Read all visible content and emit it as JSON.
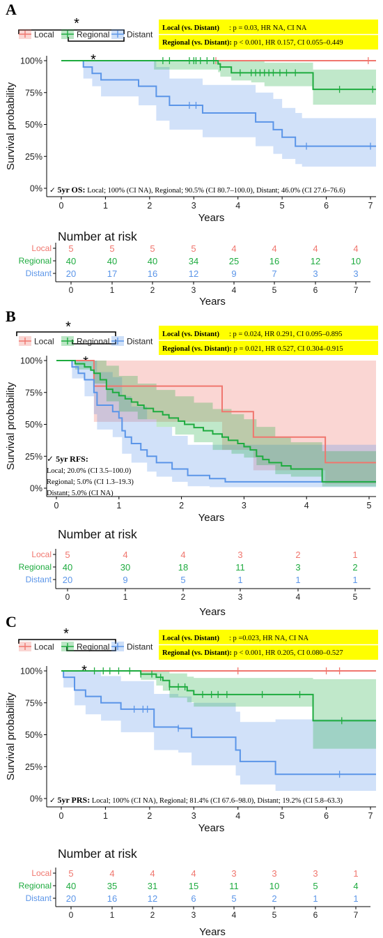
{
  "colors": {
    "local": "#f0766e",
    "regional": "#1eab3f",
    "distant": "#5b95e8",
    "highlight": "#ffff00"
  },
  "panels": [
    {
      "letter": "A",
      "legend": [
        "Local",
        "Regional",
        "Distant"
      ],
      "significance_marker": "*",
      "stats": [
        {
          "bold": "Local (vs. Distant)",
          "sep": ":",
          "text": " p = 0.03, HR NA, CI NA"
        },
        {
          "bold": "Regional (vs. Distant):",
          "sep": "",
          "text": " p < 0.001, HR 0.157, CI 0.055–0.449"
        }
      ],
      "summary": {
        "bold": "5yr OS:",
        "text": " Local; 100% (CI NA),  Regional; 90.5% (CI  80.7–100.0), Distant; 46.0% (CI 27.6–76.6)"
      },
      "risk_title": "Number at risk",
      "risk": {
        "x": [
          0,
          1,
          2,
          3,
          4,
          5,
          6,
          7
        ],
        "rows": [
          {
            "group": "Local",
            "values": [
              5,
              5,
              5,
              5,
              4,
              4,
              4,
              4
            ]
          },
          {
            "group": "Regional",
            "values": [
              40,
              40,
              40,
              34,
              25,
              16,
              12,
              10
            ]
          },
          {
            "group": "Distant",
            "values": [
              20,
              17,
              16,
              12,
              9,
              7,
              3,
              3
            ]
          }
        ]
      }
    },
    {
      "letter": "B",
      "legend": [
        "Local",
        "Regional",
        "Distant"
      ],
      "significance_marker": "*",
      "stats": [
        {
          "bold": "Local (vs. Distant)",
          "sep": ":",
          "text": " p = 0.024, HR 0.291, CI 0.095–0.895"
        },
        {
          "bold": "Regional (vs. Distant):",
          "sep": "",
          "text": " p = 0.021, HR 0.527, CI 0.304–0.915"
        }
      ],
      "summary_lines": [
        {
          "bold": "5yr RFS:",
          "text": ""
        },
        {
          "bold": "",
          "text": "Local; 20.0% (CI 3.5–100.0)"
        },
        {
          "bold": "",
          "text": "Regional; 5.0% (CI 1.3–19.3)"
        },
        {
          "bold": "",
          "text": "Distant; 5.0% (CI NA)"
        }
      ],
      "risk_title": "Number at risk",
      "risk": {
        "x": [
          0,
          1,
          2,
          3,
          4,
          5
        ],
        "rows": [
          {
            "group": "Local",
            "values": [
              5,
              4,
              4,
              3,
              2,
              1
            ]
          },
          {
            "group": "Regional",
            "values": [
              40,
              30,
              18,
              11,
              3,
              2
            ]
          },
          {
            "group": "Distant",
            "values": [
              20,
              9,
              5,
              1,
              1,
              1
            ]
          }
        ]
      }
    },
    {
      "letter": "C",
      "legend": [
        "Local",
        "Regional",
        "Distant"
      ],
      "significance_marker": "*",
      "stats": [
        {
          "bold": "Local (vs. Distant)",
          "sep": ":",
          "text": " p =0.023, HR NA, CI NA"
        },
        {
          "bold": "Regional (vs. Distant):",
          "sep": "",
          "text": " p < 0.001, HR 0.205, CI 0.080–0.527"
        }
      ],
      "summary": {
        "bold": "5yr PRS:",
        "text": " Local; 100% (CI NA),  Regional; 81.4% (CI 67.6–98.0), Distant; 19.2% (CI 5.8–63.3)"
      },
      "risk_title": "Number at risk",
      "risk": {
        "x": [
          0,
          1,
          2,
          3,
          4,
          5,
          6,
          7
        ],
        "rows": [
          {
            "group": "Local",
            "values": [
              5,
              4,
              4,
              4,
              3,
              3,
              3,
              1
            ]
          },
          {
            "group": "Regional",
            "values": [
              40,
              35,
              31,
              15,
              11,
              10,
              5,
              4
            ]
          },
          {
            "group": "Distant",
            "values": [
              20,
              16,
              12,
              6,
              5,
              2,
              1,
              1
            ]
          }
        ]
      }
    }
  ],
  "chart_data": [
    {
      "type": "line",
      "step": "post",
      "xlabel": "Years",
      "ylabel": "Survival probability",
      "xlim": [
        -0.35,
        7.35
      ],
      "ylim": [
        0,
        1.06
      ],
      "xticks": [
        0,
        1,
        2,
        3,
        4,
        5,
        6,
        7
      ],
      "yticks": [
        "0%",
        "25%",
        "50%",
        "75%",
        "100%"
      ],
      "series": [
        {
          "name": "Local",
          "x": [
            0,
            7.2
          ],
          "y": [
            1,
            1
          ],
          "band": [
            [
              0,
              1,
              1
            ],
            [
              7.2,
              1,
              1
            ]
          ],
          "censor": [
            3.5,
            6.95
          ]
        },
        {
          "name": "Regional",
          "x": [
            0,
            2.1,
            3.55,
            3.6,
            3.85,
            5.7,
            7.2
          ],
          "y": [
            1,
            1,
            0.975,
            0.95,
            0.905,
            0.775,
            0.775
          ],
          "band": [
            [
              0,
              1,
              1
            ],
            [
              2.1,
              1,
              0.93
            ],
            [
              3.55,
              1,
              0.91
            ],
            [
              3.6,
              1,
              0.875
            ],
            [
              3.85,
              1,
              0.845
            ],
            [
              4.3,
              0.995,
              0.83
            ],
            [
              4.6,
              0.985,
              0.8
            ],
            [
              5.7,
              0.93,
              0.655
            ],
            [
              7.2,
              0.93,
              0.655
            ]
          ],
          "censor": [
            2.3,
            2.45,
            2.9,
            3.0,
            3.05,
            3.15,
            3.3,
            3.45,
            3.6,
            4.05,
            4.3,
            4.4,
            4.5,
            4.6,
            4.7,
            4.8,
            4.95,
            5.1,
            5.3,
            6.3,
            7.05
          ]
        },
        {
          "name": "Distant",
          "x": [
            0,
            0.5,
            0.7,
            0.9,
            1.75,
            2.15,
            2.45,
            3.2,
            4.4,
            4.8,
            5.0,
            5.3,
            5.45,
            7.2
          ],
          "y": [
            1,
            0.95,
            0.9,
            0.85,
            0.8,
            0.72,
            0.65,
            0.59,
            0.52,
            0.46,
            0.4,
            0.33,
            0.33,
            0.33
          ],
          "band": [
            [
              0,
              1,
              1
            ],
            [
              0.5,
              1,
              0.86
            ],
            [
              0.7,
              1,
              0.8
            ],
            [
              0.9,
              1,
              0.72
            ],
            [
              1.75,
              1,
              0.65
            ],
            [
              2.15,
              0.95,
              0.53
            ],
            [
              2.45,
              0.86,
              0.46
            ],
            [
              3.2,
              0.81,
              0.4
            ],
            [
              4.4,
              0.75,
              0.33
            ],
            [
              4.8,
              0.7,
              0.27
            ],
            [
              5.0,
              0.63,
              0.23
            ],
            [
              5.3,
              0.59,
              0.19
            ],
            [
              5.45,
              0.55,
              0.17
            ],
            [
              7.2,
              0.55,
              0.17
            ]
          ],
          "censor": [
            2.9,
            3.05,
            5.55,
            7.0
          ]
        }
      ]
    },
    {
      "type": "line",
      "step": "post",
      "xlabel": "Years",
      "ylabel": "Survival probability",
      "xlim": [
        -0.2,
        5.25
      ],
      "ylim": [
        0,
        1.06
      ],
      "xticks": [
        0,
        1,
        2,
        3,
        4,
        5
      ],
      "yticks": [
        "0%",
        "25%",
        "50%",
        "75%",
        "100%"
      ],
      "series": [
        {
          "name": "Local",
          "x": [
            0,
            0.6,
            2.65,
            3.15,
            4.3,
            5.25
          ],
          "y": [
            1,
            0.8,
            0.6,
            0.4,
            0.2,
            0.2
          ],
          "band": [
            [
              0,
              1,
              1
            ],
            [
              0.6,
              1,
              0.52
            ],
            [
              2.65,
              1,
              0.3
            ],
            [
              3.15,
              1,
              0.14
            ],
            [
              4.3,
              1,
              0.035
            ],
            [
              5.25,
              1,
              0.035
            ]
          ],
          "censor": []
        },
        {
          "name": "Regional",
          "x": [
            0,
            0.3,
            0.45,
            0.55,
            0.6,
            0.7,
            0.8,
            0.9,
            1.0,
            1.1,
            1.2,
            1.3,
            1.4,
            1.55,
            1.7,
            1.8,
            1.95,
            2.05,
            2.2,
            2.35,
            2.5,
            2.65,
            2.75,
            2.9,
            3.0,
            3.1,
            3.2,
            3.3,
            3.4,
            3.6,
            3.75,
            4.25,
            5.15,
            5.25
          ],
          "y": [
            1,
            0.975,
            0.95,
            0.925,
            0.9,
            0.85,
            0.775,
            0.75,
            0.725,
            0.7,
            0.675,
            0.65,
            0.625,
            0.6,
            0.575,
            0.55,
            0.525,
            0.5,
            0.475,
            0.45,
            0.425,
            0.4,
            0.375,
            0.35,
            0.325,
            0.3,
            0.25,
            0.225,
            0.2,
            0.175,
            0.15,
            0.05,
            0.0,
            0.0
          ],
          "band": [
            [
              0,
              1,
              1
            ],
            [
              0.3,
              1,
              0.93
            ],
            [
              0.6,
              1,
              0.82
            ],
            [
              0.8,
              0.96,
              0.68
            ],
            [
              1.0,
              0.88,
              0.6
            ],
            [
              1.3,
              0.82,
              0.54
            ],
            [
              1.6,
              0.77,
              0.48
            ],
            [
              1.9,
              0.72,
              0.42
            ],
            [
              2.2,
              0.67,
              0.36
            ],
            [
              2.5,
              0.62,
              0.3
            ],
            [
              2.8,
              0.58,
              0.27
            ],
            [
              3.0,
              0.54,
              0.24
            ],
            [
              3.2,
              0.48,
              0.18
            ],
            [
              3.5,
              0.4,
              0.11
            ],
            [
              3.75,
              0.36,
              0.09
            ],
            [
              4.25,
              0.29,
              0.013
            ],
            [
              5.15,
              0.29,
              0.013
            ],
            [
              5.25,
              0.29,
              0.013
            ]
          ],
          "censor": [
            5.2
          ]
        },
        {
          "name": "Distant",
          "x": [
            0,
            0.25,
            0.35,
            0.45,
            0.6,
            0.65,
            0.9,
            1.0,
            1.05,
            1.1,
            1.2,
            1.35,
            1.45,
            1.6,
            1.85,
            2.1,
            2.45,
            2.7,
            5.25
          ],
          "y": [
            1,
            0.95,
            0.9,
            0.85,
            0.75,
            0.65,
            0.6,
            0.55,
            0.45,
            0.4,
            0.35,
            0.3,
            0.25,
            0.2,
            0.15,
            0.1,
            0.075,
            0.05,
            0.05
          ],
          "band": [
            [
              0,
              1,
              1
            ],
            [
              0.25,
              1,
              0.86
            ],
            [
              0.45,
              1,
              0.72
            ],
            [
              0.6,
              1,
              0.58
            ],
            [
              0.65,
              0.91,
              0.46
            ],
            [
              0.9,
              0.87,
              0.4
            ],
            [
              1.05,
              0.72,
              0.27
            ],
            [
              1.2,
              0.64,
              0.2
            ],
            [
              1.45,
              0.54,
              0.13
            ],
            [
              1.6,
              0.48,
              0.09
            ],
            [
              1.85,
              0.41,
              0.05
            ],
            [
              2.1,
              0.34,
              0.015
            ],
            [
              2.45,
              0.34,
              0.008
            ],
            [
              5.25,
              0.34,
              0.008
            ]
          ],
          "censor": []
        }
      ]
    },
    {
      "type": "line",
      "step": "post",
      "xlabel": "Years",
      "ylabel": "Survival probability",
      "xlim": [
        -0.35,
        7.35
      ],
      "ylim": [
        0,
        1.06
      ],
      "xticks": [
        0,
        1,
        2,
        3,
        4,
        5,
        6,
        7
      ],
      "yticks": [
        "0%",
        "25%",
        "50%",
        "75%",
        "100%"
      ],
      "series": [
        {
          "name": "Local",
          "x": [
            0,
            7.2
          ],
          "y": [
            1,
            1
          ],
          "band": [
            [
              0,
              1,
              1
            ],
            [
              7.2,
              1,
              1
            ]
          ],
          "censor": [
            4.0,
            6.0,
            6.3
          ]
        },
        {
          "name": "Regional",
          "x": [
            0,
            1.8,
            2.15,
            2.3,
            2.45,
            2.85,
            3.0,
            5.7,
            7.2
          ],
          "y": [
            1,
            0.975,
            0.95,
            0.925,
            0.875,
            0.845,
            0.815,
            0.61,
            0.61
          ],
          "band": [
            [
              0,
              1,
              1
            ],
            [
              1.8,
              1,
              0.93
            ],
            [
              2.15,
              1,
              0.885
            ],
            [
              2.3,
              1,
              0.845
            ],
            [
              2.45,
              0.98,
              0.79
            ],
            [
              2.85,
              0.955,
              0.755
            ],
            [
              3.0,
              0.945,
              0.72
            ],
            [
              5.7,
              0.935,
              0.39
            ],
            [
              7.2,
              0.935,
              0.39
            ]
          ],
          "censor": [
            0.75,
            0.95,
            1.1,
            1.3,
            1.55,
            1.8,
            2.05,
            2.25,
            2.45,
            2.65,
            2.8,
            3.2,
            3.4,
            3.55,
            3.75,
            4.55,
            5.4,
            6.35
          ]
        },
        {
          "name": "Distant",
          "x": [
            0,
            0.05,
            0.3,
            0.55,
            0.9,
            1.35,
            2.1,
            2.65,
            2.95,
            3.95,
            4.05,
            4.85,
            7.2
          ],
          "y": [
            1,
            0.95,
            0.85,
            0.8,
            0.75,
            0.7,
            0.56,
            0.55,
            0.48,
            0.38,
            0.29,
            0.19,
            0.19
          ],
          "band": [
            [
              0,
              1,
              1
            ],
            [
              0.05,
              1,
              0.87
            ],
            [
              0.3,
              1,
              0.73
            ],
            [
              0.55,
              1,
              0.66
            ],
            [
              0.9,
              0.96,
              0.61
            ],
            [
              1.35,
              0.92,
              0.52
            ],
            [
              2.1,
              0.82,
              0.38
            ],
            [
              2.65,
              0.8,
              0.36
            ],
            [
              2.95,
              0.75,
              0.26
            ],
            [
              3.95,
              0.68,
              0.18
            ],
            [
              4.05,
              0.6,
              0.11
            ],
            [
              4.85,
              0.62,
              0.06
            ],
            [
              7.2,
              0.62,
              0.06
            ]
          ],
          "censor": [
            1.65,
            1.85,
            1.95,
            2.65,
            6.3
          ]
        }
      ]
    }
  ]
}
